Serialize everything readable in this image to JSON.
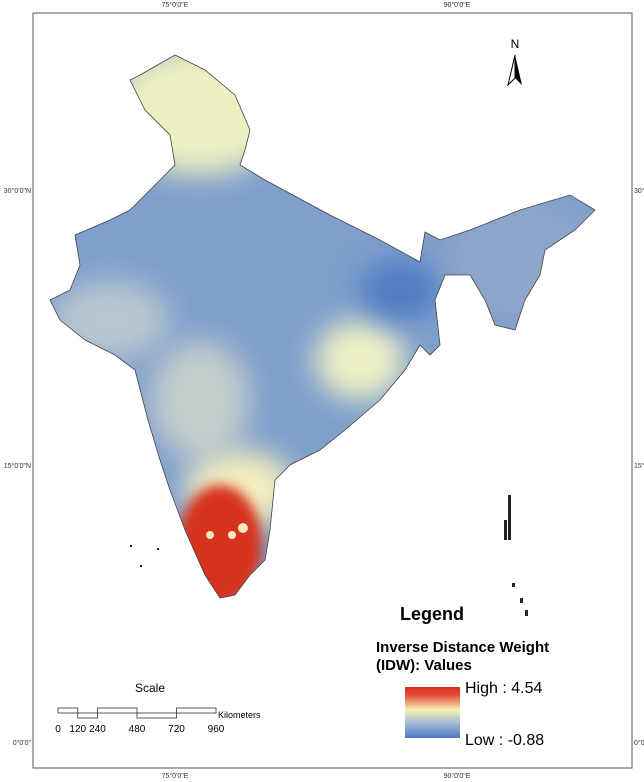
{
  "map": {
    "lon_labels": [
      "75°0'0\"E",
      "90°0'0\"E"
    ],
    "lat_labels": [
      "30°0'0\"N",
      "15°0'0\"N",
      "0°0'0\""
    ],
    "north": "N",
    "legend": {
      "title": "Legend",
      "subtitle_1": "Inverse Distance Weight",
      "subtitle_2": "(IDW): Values",
      "high": "High : 4.54",
      "low": "Low : -0.88"
    },
    "scale": {
      "title": "Scale",
      "unit": "Kilometers",
      "ticks": [
        0,
        120,
        240,
        480,
        720,
        960
      ]
    }
  }
}
